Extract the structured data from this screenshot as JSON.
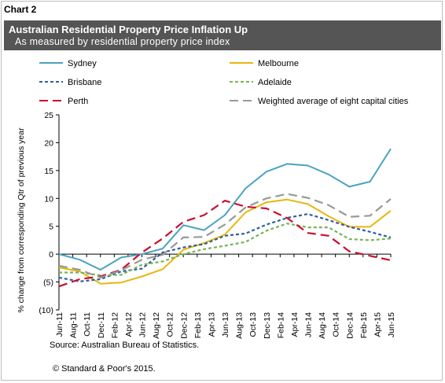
{
  "chart_label": "Chart 2",
  "header": {
    "title": "Australian Residential Property Price Inflation Up",
    "subtitle": "As measured by residential property price index"
  },
  "footer": {
    "source": "Source: Australian Bureau of Statistics.",
    "copyright": "© Standard & Poor's 2015."
  },
  "chart_data": {
    "type": "line",
    "ylabel": "% change from corresponding Qtr of previous year",
    "ylim": [
      -10,
      25
    ],
    "yticks": [
      -10,
      -5,
      0,
      5,
      10,
      15,
      20,
      25
    ],
    "ytick_labels": [
      "(10)",
      "(5)",
      "0",
      "5",
      "10",
      "15",
      "20",
      "25"
    ],
    "grid": false,
    "legend_position": "top",
    "x": [
      "Jun-11",
      "Aug-11",
      "Oct-11",
      "Dec-11",
      "Feb-12",
      "Apr-12",
      "Jun-12",
      "Aug-12",
      "Oct-12",
      "Dec-12",
      "Feb-13",
      "Apr-13",
      "Jun-13",
      "Aug-13",
      "Oct-13",
      "Dec-13",
      "Feb-14",
      "Apr-14",
      "Jun-14",
      "Aug-14",
      "Oct-14",
      "Dec-14",
      "Feb-15",
      "Apr-15",
      "Jun-15"
    ],
    "series": [
      {
        "name": "Sydney",
        "color": "#4aa3c0",
        "dash": "solid",
        "quarter_values": [
          0.0,
          -1.0,
          -2.8,
          -0.6,
          0.0,
          1.0,
          5.2,
          4.3,
          7.0,
          11.8,
          14.8,
          16.2,
          15.9,
          14.3,
          12.1,
          13.0,
          18.9
        ]
      },
      {
        "name": "Melbourne",
        "color": "#e8b70e",
        "dash": "solid",
        "quarter_values": [
          -2.4,
          -3.1,
          -5.3,
          -5.1,
          -4.0,
          -2.7,
          0.8,
          2.0,
          3.5,
          7.5,
          9.3,
          9.8,
          9.0,
          6.8,
          4.9,
          4.9,
          7.8
        ]
      },
      {
        "name": "Brisbane",
        "color": "#2e5f9e",
        "dash": "dashed",
        "quarter_values": [
          -4.2,
          -4.9,
          -4.5,
          -3.1,
          -2.6,
          0.3,
          1.2,
          1.8,
          3.3,
          3.7,
          5.3,
          6.5,
          7.2,
          6.1,
          4.9,
          4.0,
          3.0
        ]
      },
      {
        "name": "Adelaide",
        "color": "#78b459",
        "dash": "dashed",
        "quarter_values": [
          -3.3,
          -3.3,
          -3.8,
          -3.7,
          -1.9,
          -1.3,
          0.0,
          0.9,
          1.5,
          2.2,
          4.2,
          5.5,
          4.8,
          4.8,
          2.7,
          2.5,
          2.8
        ]
      },
      {
        "name": "Perth",
        "color": "#c8102e",
        "dash": "dashed",
        "quarter_values": [
          -5.8,
          -4.5,
          -4.0,
          -2.8,
          0.3,
          2.8,
          5.8,
          7.0,
          9.6,
          8.5,
          8.2,
          6.5,
          3.8,
          3.3,
          0.5,
          -0.3,
          -1.1
        ]
      },
      {
        "name": "Weighted average of eight capital cities",
        "color": "#999999",
        "dash": "dashed",
        "quarter_values": [
          -2.1,
          -2.8,
          -4.2,
          -2.9,
          -1.0,
          -0.1,
          3.0,
          3.1,
          5.3,
          8.4,
          10.0,
          10.8,
          10.1,
          8.8,
          6.7,
          6.9,
          9.9
        ]
      }
    ]
  }
}
